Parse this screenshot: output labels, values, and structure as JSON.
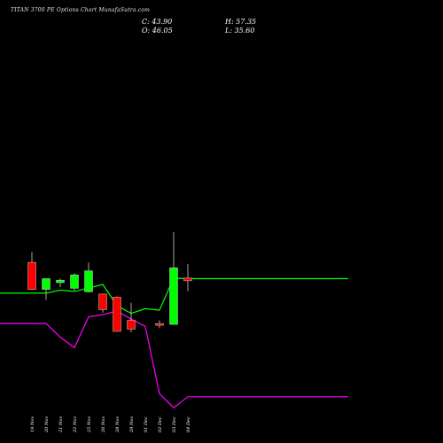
{
  "header": {
    "title": "TITAN 3700 PE Options Chart MunafaSutra.com",
    "c_label": "C: 43.90",
    "o_label": "O: 46.05",
    "h_label": "H: 57.35",
    "l_label": "L: 35.60"
  },
  "colors": {
    "background": "#000000",
    "upper_line": "#00ff00",
    "lower_line": "#ff00ff",
    "bull": "#00ff00",
    "bear": "#ff0000",
    "wick": "#cccccc"
  },
  "chart_data": {
    "type": "candlestick",
    "categories": [
      "19 Nov",
      "20 Nov",
      "21 Nov",
      "22 Nov",
      "25 Nov",
      "26 Nov",
      "28 Nov",
      "29 Nov",
      "01 Dec",
      "02 Dec",
      "03 Dec",
      "04 Dec"
    ],
    "ohlc": [
      {
        "open": 58.6,
        "high": 66.8,
        "low": 36.5,
        "close": 37.0
      },
      {
        "open": 37.0,
        "high": 45.6,
        "low": 28.6,
        "close": 45.6
      },
      {
        "open": 42.4,
        "high": 45.7,
        "low": 38.9,
        "close": 44.4
      },
      {
        "open": 37.9,
        "high": 50.0,
        "low": 36.1,
        "close": 48.6
      },
      {
        "open": 35.1,
        "high": 58.5,
        "low": 34.6,
        "close": 51.8
      },
      {
        "open": 33.3,
        "high": 33.3,
        "low": 18.5,
        "close": 20.9
      },
      {
        "open": 30.8,
        "high": 31.4,
        "low": 3.5,
        "close": 3.5
      },
      {
        "open": 12.4,
        "high": 26.3,
        "low": 2.7,
        "close": 5.3
      },
      {
        "open": 9.8,
        "high": 12.4,
        "low": 6.1,
        "close": 8.4
      },
      {
        "open": 9.1,
        "high": 82.8,
        "low": 9.1,
        "close": 54.3
      },
      {
        "open": 46.05,
        "high": 57.35,
        "low": 35.6,
        "close": 43.9
      }
    ],
    "ohlc_dates": [
      "19 Nov",
      "20 Nov",
      "21 Nov",
      "22 Nov",
      "25 Nov",
      "26 Nov",
      "28 Nov",
      "29 Nov",
      "02 Dec",
      "03 Dec",
      "04 Dec"
    ],
    "bands": {
      "upper": [
        34.0,
        34.0,
        36.4,
        35.4,
        38.0,
        41.0,
        24.0,
        17.9,
        21.6,
        20.4,
        46.0,
        45.6
      ],
      "lower": [
        9.8,
        9.8,
        -1.1,
        -9.5,
        15.1,
        16.8,
        19.8,
        13.3,
        7.5,
        -46.2,
        -57.4,
        -48.6
      ]
    }
  }
}
